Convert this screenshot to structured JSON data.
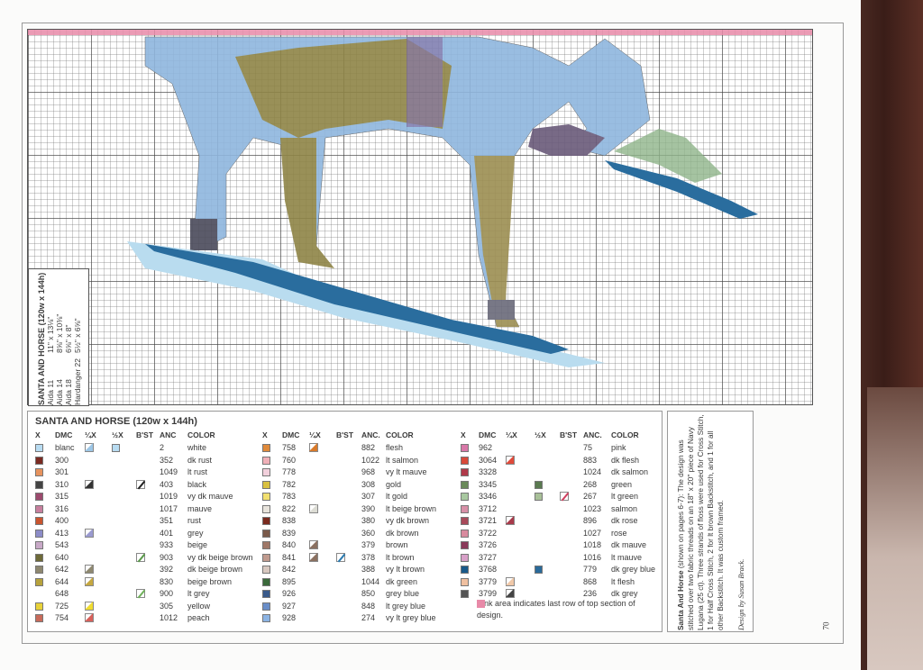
{
  "colors": {
    "pink_row": "#e88aa8",
    "horse_blue": "#8fb6de",
    "horse_olive": "#8e8446",
    "snow_dark": "#2a6d9e",
    "snow_light": "#b9dcef",
    "green": "#8fb48a"
  },
  "size_box": {
    "title": "SANTA AND HORSE (120w x 144h)",
    "rows": [
      {
        "fabric": "Aida 11",
        "size": "11\" x 13⅛\""
      },
      {
        "fabric": "Aida 14",
        "size": "8⅝\" x 10⅜\""
      },
      {
        "fabric": "Aida 18",
        "size": "6⅝\" x 8\""
      },
      {
        "fabric": "Hardanger 22",
        "size": "5½\" x 6⅝\""
      }
    ]
  },
  "legend": {
    "title": "SANTA AND HORSE (120w x 144h)",
    "col1": {
      "headers": {
        "x": "X",
        "dmc": "DMC",
        "q": "¼X",
        "h": "½X",
        "b": "B'ST",
        "anc": "ANC",
        "color": "COLOR"
      },
      "rows": [
        {
          "s": "#b8dcf2",
          "dmc": "blanc",
          "q": "#9cc6e6",
          "h": "#b8dcf2",
          "b": null,
          "anc": "2",
          "color": "white"
        },
        {
          "s": "#7a2a22",
          "dmc": "300",
          "q": null,
          "h": null,
          "b": null,
          "anc": "352",
          "color": "dk rust"
        },
        {
          "s": "#e7935e",
          "dmc": "301",
          "q": null,
          "h": null,
          "b": null,
          "anc": "1049",
          "color": "lt rust"
        },
        {
          "s": "#444",
          "dmc": "310",
          "q": "#333",
          "h": null,
          "b": "#222",
          "anc": "403",
          "color": "black"
        },
        {
          "s": "#9c4a6e",
          "dmc": "315",
          "q": null,
          "h": null,
          "b": null,
          "anc": "1019",
          "color": "vy dk mauve"
        },
        {
          "s": "#c77f9e",
          "dmc": "316",
          "q": null,
          "h": null,
          "b": null,
          "anc": "1017",
          "color": "mauve"
        },
        {
          "s": "#c9542e",
          "dmc": "400",
          "q": null,
          "h": null,
          "b": null,
          "anc": "351",
          "color": "rust"
        },
        {
          "s": "#8c8cc8",
          "dmc": "413",
          "q": "#9a9ad0",
          "h": null,
          "b": null,
          "anc": "401",
          "color": "grey"
        },
        {
          "s": "#c8a9c7",
          "dmc": "543",
          "q": null,
          "h": null,
          "b": null,
          "anc": "933",
          "color": "beige"
        },
        {
          "s": "#6e6a38",
          "dmc": "640",
          "q": null,
          "h": null,
          "b": "#5a9a4a",
          "anc": "903",
          "color": "vy dk beige brown"
        },
        {
          "s": "#8e8870",
          "dmc": "642",
          "q": "#8e8870",
          "h": null,
          "b": null,
          "anc": "392",
          "color": "dk beige brown"
        },
        {
          "s": "#b7a23c",
          "dmc": "644",
          "q": "#c6a840",
          "h": null,
          "b": null,
          "anc": "830",
          "color": "beige brown"
        },
        {
          "s": null,
          "dmc": "648",
          "q": null,
          "h": null,
          "b": "#6fb05a",
          "anc": "900",
          "color": "lt grey"
        },
        {
          "s": "#e8d23a",
          "dmc": "725",
          "q": "#f0dc30",
          "h": null,
          "b": null,
          "anc": "305",
          "color": "yellow"
        },
        {
          "s": "#c86a5a",
          "dmc": "754",
          "q": "#d8605a",
          "h": null,
          "b": null,
          "anc": "1012",
          "color": "peach"
        }
      ]
    },
    "col2": {
      "headers": {
        "x": "X",
        "dmc": "DMC",
        "q": "¼X",
        "b": "B'ST",
        "anc": "ANC.",
        "color": "COLOR"
      },
      "rows": [
        {
          "s": "#e08a3a",
          "dmc": "758",
          "q": "#d87a2a",
          "b": null,
          "anc": "882",
          "color": "flesh"
        },
        {
          "s": "#f0b0b8",
          "dmc": "760",
          "q": null,
          "b": null,
          "anc": "1022",
          "color": "lt salmon"
        },
        {
          "s": "#f2d0dc",
          "dmc": "778",
          "q": null,
          "b": null,
          "anc": "968",
          "color": "vy lt mauve"
        },
        {
          "s": "#d8c040",
          "dmc": "782",
          "q": null,
          "b": null,
          "anc": "308",
          "color": "gold"
        },
        {
          "s": "#f2e070",
          "dmc": "783",
          "q": null,
          "b": null,
          "anc": "307",
          "color": "lt gold"
        },
        {
          "s": "#e8e4dc",
          "dmc": "822",
          "q": "#dcdcd4",
          "b": null,
          "anc": "390",
          "color": "lt beige brown"
        },
        {
          "s": "#7a2a1e",
          "dmc": "838",
          "q": null,
          "b": null,
          "anc": "380",
          "color": "vy dk brown"
        },
        {
          "s": "#7a5a4a",
          "dmc": "839",
          "q": null,
          "b": null,
          "anc": "360",
          "color": "dk brown"
        },
        {
          "s": "#a07868",
          "dmc": "840",
          "q": "#8a7060",
          "b": null,
          "anc": "379",
          "color": "brown"
        },
        {
          "s": "#c09a8e",
          "dmc": "841",
          "q": "#8a7060",
          "b": "#2a7ab0",
          "anc": "378",
          "color": "lt brown"
        },
        {
          "s": "#d8c8c0",
          "dmc": "842",
          "q": null,
          "b": null,
          "anc": "388",
          "color": "vy lt brown"
        },
        {
          "s": "#3a6a3a",
          "dmc": "895",
          "q": null,
          "b": null,
          "anc": "1044",
          "color": "dk green"
        },
        {
          "s": "#3a5a8a",
          "dmc": "926",
          "q": null,
          "b": null,
          "anc": "850",
          "color": "grey blue"
        },
        {
          "s": "#6a8ec8",
          "dmc": "927",
          "q": null,
          "b": null,
          "anc": "848",
          "color": "lt grey blue"
        },
        {
          "s": "#8cb4e4",
          "dmc": "928",
          "q": null,
          "b": null,
          "anc": "274",
          "color": "vy lt grey blue"
        }
      ]
    },
    "col3": {
      "headers": {
        "x": "X",
        "dmc": "DMC",
        "q": "¼X",
        "h": "½X",
        "b": "B'ST",
        "anc": "ANC.",
        "color": "COLOR"
      },
      "rows": [
        {
          "s": "#d878a8",
          "dmc": "962",
          "q": null,
          "h": null,
          "b": null,
          "anc": "75",
          "color": "pink"
        },
        {
          "s": "#d84a3a",
          "dmc": "3064",
          "q": "#e04a3a",
          "h": null,
          "b": null,
          "anc": "883",
          "color": "dk flesh"
        },
        {
          "s": "#b03a4a",
          "dmc": "3328",
          "q": null,
          "h": null,
          "b": null,
          "anc": "1024",
          "color": "dk salmon"
        },
        {
          "s": "#6a8a5a",
          "dmc": "3345",
          "q": null,
          "h": "#5a7a50",
          "b": null,
          "anc": "268",
          "color": "green"
        },
        {
          "s": "#a8c8a0",
          "dmc": "3346",
          "q": null,
          "h": "#a8c098",
          "b": "#d04060",
          "anc": "267",
          "color": "lt green"
        },
        {
          "s": "#d890a8",
          "dmc": "3712",
          "q": null,
          "h": null,
          "b": null,
          "anc": "1023",
          "color": "salmon"
        },
        {
          "s": "#a84a5a",
          "dmc": "3721",
          "q": "#a83a4a",
          "h": null,
          "b": null,
          "anc": "896",
          "color": "dk rose"
        },
        {
          "s": "#d88a9e",
          "dmc": "3722",
          "q": null,
          "h": null,
          "b": null,
          "anc": "1027",
          "color": "rose"
        },
        {
          "s": "#8a3a5a",
          "dmc": "3726",
          "q": null,
          "h": null,
          "b": null,
          "anc": "1018",
          "color": "dk mauve"
        },
        {
          "s": "#d8a0c8",
          "dmc": "3727",
          "q": null,
          "h": null,
          "b": null,
          "anc": "1016",
          "color": "lt mauve"
        },
        {
          "s": "#1a5a8a",
          "dmc": "3768",
          "q": null,
          "h": "#2a6a9a",
          "b": null,
          "anc": "779",
          "color": "dk grey blue"
        },
        {
          "s": "#f0c0a0",
          "dmc": "3779",
          "q": "#f0c8a8",
          "h": null,
          "b": null,
          "anc": "868",
          "color": "lt flesh"
        },
        {
          "s": "#555",
          "dmc": "3799",
          "q": "#444",
          "h": null,
          "b": null,
          "anc": "236",
          "color": "dk grey"
        }
      ],
      "note": "Pink area indicates last row of top section of design."
    }
  },
  "side_note": {
    "title": "Santa And Horse",
    "text": " (shown on pages 6-7): The design was stitched over two fabric threads on an 18\" x 20\" piece of Navy Lugana (25 ct). Three strands of floss were used for Cross Stitch, 1 for Half Cross Stitch, 2 for lt brown Backstitch, and 1 for all other Backstitch. It was custom framed.",
    "credit": "Design by Susan Brack."
  },
  "page_number": "70"
}
